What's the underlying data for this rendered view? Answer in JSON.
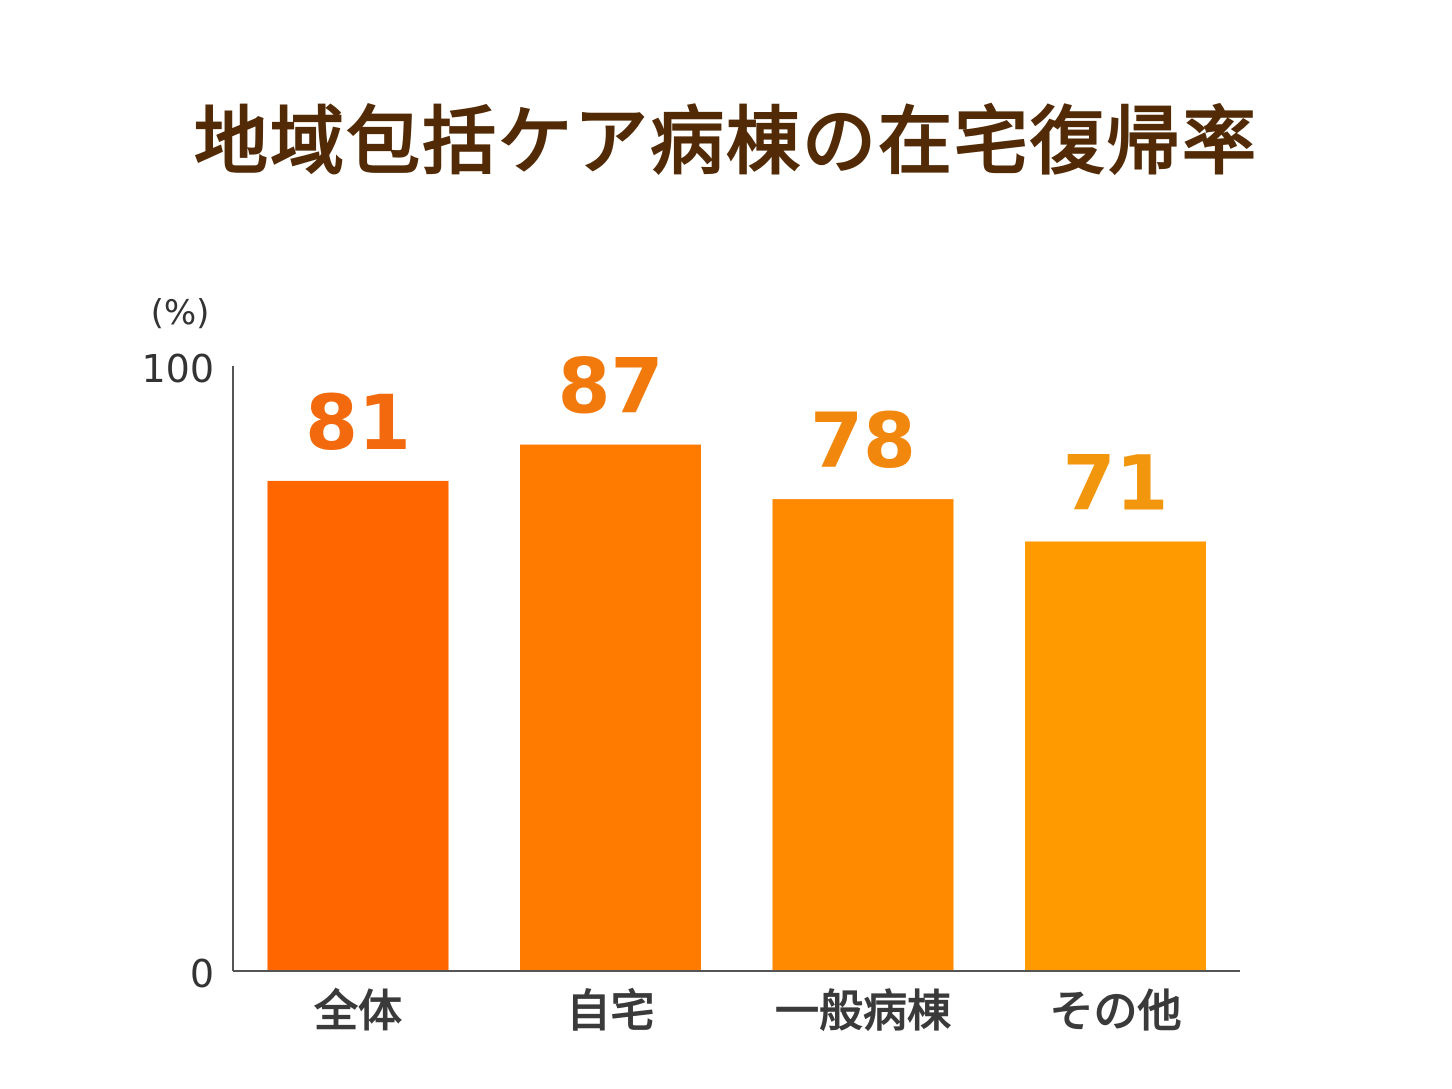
{
  "chart_data": {
    "type": "bar",
    "title": "地域包括ケア病棟の在宅復帰率",
    "unit_label": "(%)",
    "categories": [
      "全体",
      "自宅",
      "一般病棟",
      "その他"
    ],
    "values": [
      81,
      87,
      78,
      71
    ],
    "value_labels": [
      "81",
      "87",
      "78",
      "71"
    ],
    "ylim": [
      0,
      100
    ],
    "yticks": [
      "0",
      "100"
    ],
    "grid": false,
    "legend": "none",
    "colors": {
      "bars": [
        "#ff6600",
        "#ff7b00",
        "#ff8a00",
        "#ff9a00"
      ],
      "value_labels": [
        "#f26a0d",
        "#f27a0d",
        "#f2870d",
        "#f2960d"
      ],
      "title": "#522a06",
      "axis": "#555555"
    }
  }
}
